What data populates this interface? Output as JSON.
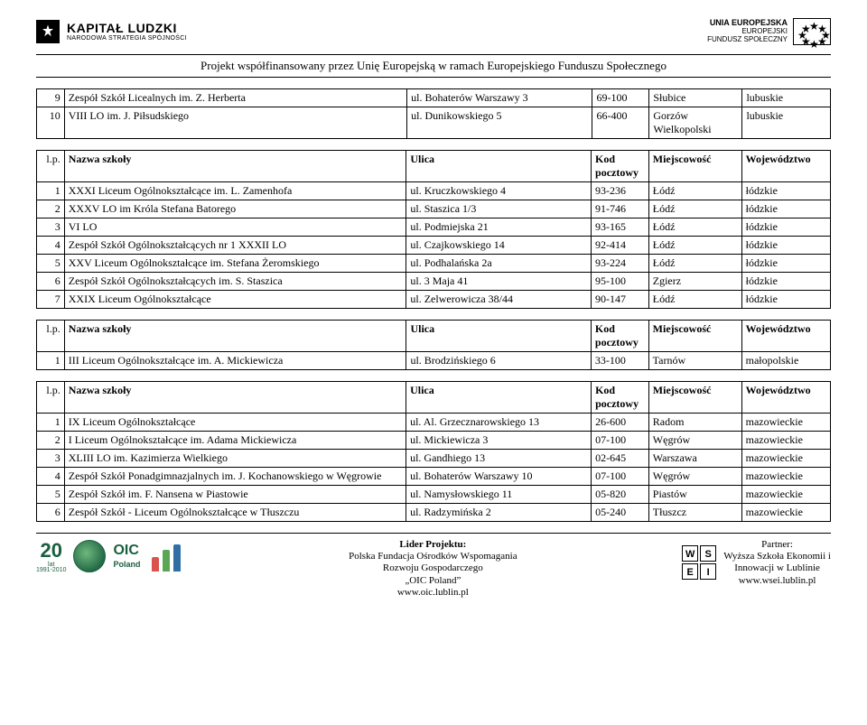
{
  "header": {
    "kl_title": "KAPITAŁ LUDZKI",
    "kl_sub": "NARODOWA STRATEGIA SPÓJNOŚCI",
    "eu_line1": "UNIA EUROPEJSKA",
    "eu_line2": "EUROPEJSKI",
    "eu_line3": "FUNDUSZ SPOŁECZNY",
    "subtitle": "Projekt współfinansowany przez Unię Europejską w ramach Europejskiego Funduszu Społecznego"
  },
  "columns": {
    "lp": "l.p.",
    "name": "Nazwa szkoły",
    "street": "Ulica",
    "code": "Kod pocztowy",
    "city": "Miejscowość",
    "region": "Województwo"
  },
  "table0": [
    {
      "n": "9",
      "name": "Zespół Szkół Licealnych im. Z. Herberta",
      "street": "ul. Bohaterów Warszawy 3",
      "code": "69-100",
      "city": "Słubice",
      "reg": "lubuskie"
    },
    {
      "n": "10",
      "name": "VIII LO im. J. Piłsudskiego",
      "street": "ul. Dunikowskiego 5",
      "code": "66-400",
      "city": "Gorzów Wielkopolski",
      "reg": "lubuskie"
    }
  ],
  "table1": [
    {
      "n": "1",
      "name": "XXXI Liceum Ogólnokształcące im. L. Zamenhofa",
      "street": "ul. Kruczkowskiego 4",
      "code": "93-236",
      "city": "Łódź",
      "reg": "łódzkie"
    },
    {
      "n": "2",
      "name": "XXXV LO im Króla Stefana Batorego",
      "street": "ul. Staszica 1/3",
      "code": "91-746",
      "city": "Łódź",
      "reg": "łódzkie"
    },
    {
      "n": "3",
      "name": "VI LO",
      "street": "ul. Podmiejska 21",
      "code": "93-165",
      "city": "Łódź",
      "reg": "łódzkie"
    },
    {
      "n": "4",
      "name": "Zespół Szkół Ogólnokształcących nr 1 XXXII LO",
      "street": "ul. Czajkowskiego 14",
      "code": "92-414",
      "city": "Łódź",
      "reg": "łódzkie"
    },
    {
      "n": "5",
      "name": "XXV Liceum Ogólnokształcące im. Stefana Żeromskiego",
      "street": "ul. Podhalańska 2a",
      "code": "93-224",
      "city": "Łódź",
      "reg": "łódzkie"
    },
    {
      "n": "6",
      "name": "Zespół Szkół Ogólnokształcących im. S. Staszica",
      "street": "ul. 3 Maja 41",
      "code": "95-100",
      "city": "Zgierz",
      "reg": "łódzkie"
    },
    {
      "n": "7",
      "name": "XXIX Liceum Ogólnokształcące",
      "street": "ul. Zelwerowicza 38/44",
      "code": "90-147",
      "city": "Łódź",
      "reg": "łódzkie"
    }
  ],
  "table2": [
    {
      "n": "1",
      "name": "III Liceum Ogólnokształcące im. A. Mickiewicza",
      "street": "ul. Brodzińskiego 6",
      "code": "33-100",
      "city": "Tarnów",
      "reg": "małopolskie"
    }
  ],
  "table3": [
    {
      "n": "1",
      "name": "IX Liceum Ogólnokształcące",
      "street": "ul. Al. Grzecznarowskiego 13",
      "code": "26-600",
      "city": "Radom",
      "reg": "mazowieckie"
    },
    {
      "n": "2",
      "name": "I Liceum Ogólnokształcące im. Adama Mickiewicza",
      "street": "ul. Mickiewicza 3",
      "code": "07-100",
      "city": "Węgrów",
      "reg": "mazowieckie"
    },
    {
      "n": "3",
      "name": "XLIII LO im. Kazimierza Wielkiego",
      "street": "ul. Gandhiego 13",
      "code": "02-645",
      "city": "Warszawa",
      "reg": "mazowieckie"
    },
    {
      "n": "4",
      "name": "Zespół Szkół Ponadgimnazjalnych im. J. Kochanowskiego w Węgrowie",
      "street": "ul. Bohaterów Warszawy 10",
      "code": "07-100",
      "city": "Węgrów",
      "reg": "mazowieckie"
    },
    {
      "n": "5",
      "name": "Zespół Szkół im. F. Nansena w Piastowie",
      "street": "ul. Namysłowskiego 11",
      "code": "05-820",
      "city": "Piastów",
      "reg": "mazowieckie"
    },
    {
      "n": "6",
      "name": "Zespół Szkół - Liceum Ogólnokształcące w Tłuszczu",
      "street": "ul. Radzymińska 2",
      "code": "05-240",
      "city": "Tłuszcz",
      "reg": "mazowieckie"
    }
  ],
  "footer": {
    "twenty": "20",
    "twenty_sub1": "lat",
    "twenty_sub2": "1991-2010",
    "oic": "OIC",
    "oic_sub": "Poland",
    "lead_title": "Lider Projektu:",
    "lead_l1": "Polska Fundacja Ośrodków Wspomagania",
    "lead_l2": "Rozwoju Gospodarczego",
    "lead_l3": "„OIC Poland”",
    "lead_url": "www.oic.lublin.pl",
    "wsei": [
      "W",
      "S",
      "E",
      "I"
    ],
    "partner_title": "Partner:",
    "partner_l1": "Wyższa Szkoła Ekonomii i",
    "partner_l2": "Innowacji w Lublinie",
    "partner_url": "www.wsei.lublin.pl"
  }
}
